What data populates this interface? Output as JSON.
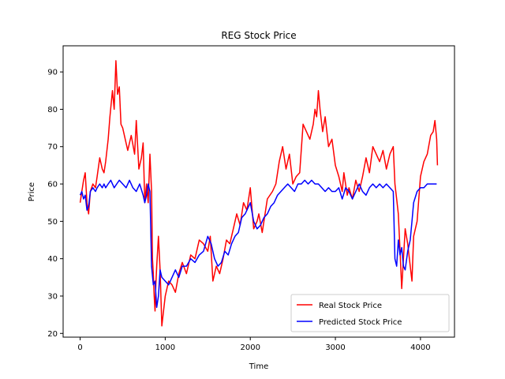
{
  "chart_data": {
    "type": "line",
    "title": "REG Stock Price",
    "xlabel": "Time",
    "ylabel": "Price",
    "xlim": [
      -200,
      4400
    ],
    "ylim": [
      19,
      97
    ],
    "xticks": [
      0,
      1000,
      2000,
      3000,
      4000
    ],
    "yticks": [
      20,
      30,
      40,
      50,
      60,
      70,
      80,
      90
    ],
    "grid": false,
    "legend_position": "lower-right",
    "series": [
      {
        "name": "Real Stock Price",
        "color": "#ff0000",
        "x": [
          0,
          20,
          40,
          60,
          80,
          100,
          120,
          150,
          180,
          200,
          230,
          260,
          280,
          300,
          330,
          350,
          380,
          400,
          420,
          440,
          460,
          480,
          500,
          530,
          560,
          600,
          640,
          660,
          690,
          720,
          740,
          760,
          780,
          800,
          820,
          840,
          850,
          860,
          870,
          880,
          890,
          900,
          920,
          940,
          960,
          1000,
          1040,
          1080,
          1120,
          1160,
          1200,
          1250,
          1300,
          1350,
          1400,
          1450,
          1500,
          1530,
          1560,
          1600,
          1640,
          1680,
          1720,
          1760,
          1800,
          1840,
          1880,
          1920,
          1960,
          2000,
          2040,
          2080,
          2100,
          2140,
          2200,
          2260,
          2300,
          2340,
          2380,
          2420,
          2460,
          2500,
          2540,
          2580,
          2620,
          2660,
          2700,
          2740,
          2760,
          2780,
          2800,
          2820,
          2850,
          2880,
          2920,
          2960,
          3000,
          3040,
          3080,
          3100,
          3140,
          3160,
          3200,
          3240,
          3280,
          3320,
          3360,
          3400,
          3440,
          3480,
          3520,
          3560,
          3600,
          3640,
          3680,
          3700,
          3720,
          3740,
          3760,
          3780,
          3800,
          3820,
          3850,
          3880,
          3900,
          3920,
          3960,
          4000,
          4040,
          4080,
          4120,
          4150,
          4170,
          4190,
          4200
        ],
        "y": [
          55,
          58,
          61,
          63,
          55,
          52,
          58,
          60,
          59,
          62,
          67,
          64,
          63,
          66,
          72,
          78,
          85,
          80,
          93,
          84,
          86,
          76,
          75,
          72,
          69,
          73,
          68,
          77,
          64,
          67,
          71,
          55,
          60,
          55,
          68,
          58,
          40,
          36,
          30,
          26,
          33,
          38,
          46,
          37,
          22,
          30,
          34,
          33,
          31,
          36,
          39,
          36,
          41,
          40,
          45,
          44,
          42,
          46,
          34,
          38,
          36,
          40,
          45,
          44,
          48,
          52,
          49,
          55,
          53,
          59,
          48,
          50,
          52,
          47,
          56,
          58,
          60,
          66,
          70,
          64,
          68,
          60,
          62,
          63,
          76,
          74,
          72,
          76,
          80,
          78,
          85,
          80,
          74,
          78,
          70,
          72,
          65,
          62,
          58,
          63,
          57,
          59,
          56,
          61,
          58,
          62,
          67,
          63,
          70,
          68,
          66,
          69,
          64,
          68,
          70,
          60,
          56,
          52,
          42,
          32,
          40,
          48,
          44,
          38,
          34,
          46,
          50,
          62,
          66,
          68,
          73,
          74,
          77,
          72,
          65
        ]
      },
      {
        "name": "Predicted Stock Price",
        "color": "#0000ff",
        "x": [
          0,
          20,
          40,
          60,
          80,
          100,
          120,
          150,
          180,
          200,
          230,
          260,
          280,
          300,
          330,
          360,
          400,
          430,
          460,
          500,
          540,
          580,
          620,
          660,
          700,
          740,
          760,
          780,
          800,
          820,
          840,
          860,
          880,
          900,
          920,
          940,
          960,
          1000,
          1040,
          1080,
          1120,
          1160,
          1200,
          1250,
          1300,
          1350,
          1400,
          1450,
          1500,
          1540,
          1580,
          1620,
          1660,
          1700,
          1740,
          1780,
          1820,
          1860,
          1900,
          1940,
          1980,
          2000,
          2040,
          2080,
          2120,
          2160,
          2200,
          2240,
          2280,
          2320,
          2360,
          2400,
          2440,
          2480,
          2520,
          2560,
          2600,
          2640,
          2680,
          2720,
          2760,
          2800,
          2840,
          2880,
          2920,
          2960,
          3000,
          3040,
          3080,
          3120,
          3160,
          3200,
          3240,
          3280,
          3320,
          3360,
          3400,
          3440,
          3480,
          3520,
          3560,
          3600,
          3640,
          3680,
          3700,
          3720,
          3740,
          3760,
          3780,
          3800,
          3820,
          3850,
          3880,
          3900,
          3920,
          3960,
          4000,
          4040,
          4080,
          4120,
          4160,
          4190
        ],
        "y": [
          57,
          58,
          56,
          57,
          53,
          54,
          58,
          59,
          58,
          59,
          60,
          59,
          60,
          59,
          60,
          61,
          59,
          60,
          61,
          60,
          59,
          61,
          59,
          58,
          60,
          57,
          55,
          57,
          60,
          58,
          38,
          33,
          34,
          27,
          30,
          37,
          35,
          34,
          33,
          35,
          37,
          35,
          38,
          38,
          40,
          39,
          41,
          42,
          46,
          44,
          40,
          38,
          39,
          42,
          41,
          44,
          46,
          47,
          51,
          52,
          54,
          55,
          50,
          48,
          49,
          51,
          52,
          54,
          55,
          57,
          58,
          59,
          60,
          59,
          58,
          60,
          60,
          61,
          60,
          61,
          60,
          60,
          59,
          58,
          59,
          58,
          58,
          59,
          56,
          59,
          58,
          56,
          58,
          60,
          58,
          57,
          59,
          60,
          59,
          60,
          59,
          60,
          59,
          58,
          40,
          38,
          45,
          41,
          43,
          38,
          37,
          42,
          45,
          50,
          55,
          58,
          59,
          59,
          60,
          60,
          60,
          60
        ]
      }
    ]
  }
}
